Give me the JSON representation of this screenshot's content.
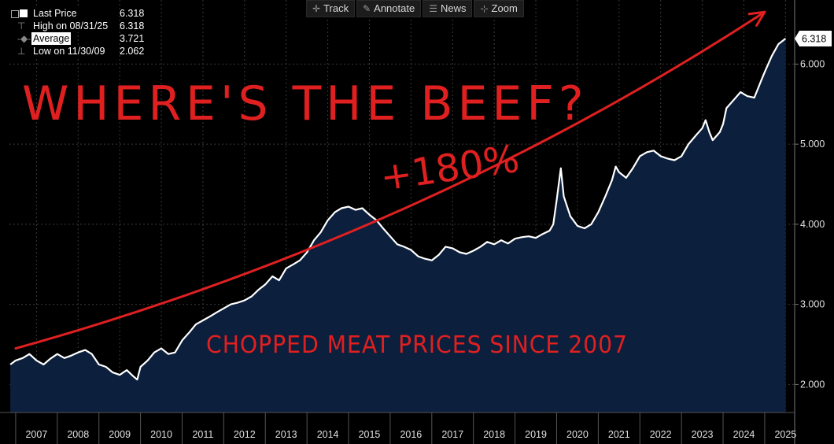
{
  "toolbar": {
    "track": "Track",
    "annotate": "Annotate",
    "news": "News",
    "zoom": "Zoom"
  },
  "legend": {
    "last_label": "Last Price",
    "last_value": "6.318",
    "high_label": "High on 08/31/25",
    "high_value": "6.318",
    "avg_label": "Average",
    "avg_value": "3.721",
    "low_label": "Low on 11/30/09",
    "low_value": "2.062"
  },
  "annotations": {
    "headline": "WHERE'S THE BEEF?",
    "pct": "+180%",
    "caption": "CHOPPED MEAT PRICES SINCE 2007"
  },
  "colors": {
    "background": "#000000",
    "line": "#ffffff",
    "area": "#0c1f3d",
    "annotation": "#e02020",
    "grid": "#3a3a3a"
  },
  "chart_data": {
    "type": "area",
    "xlim": [
      2006.85,
      2025.72
    ],
    "ylim": [
      1.65,
      6.8
    ],
    "yticks": [
      2.0,
      3.0,
      4.0,
      5.0,
      6.0
    ],
    "ytick_labels": [
      "2.000",
      "3.000",
      "4.000",
      "5.000",
      "6.000"
    ],
    "xtick_labels": [
      "2007",
      "2008",
      "2009",
      "2010",
      "2011",
      "2012",
      "2013",
      "2014",
      "2015",
      "2016",
      "2017",
      "2018",
      "2019",
      "2020",
      "2021",
      "2022",
      "2023",
      "2024",
      "2025"
    ],
    "last_value_label": "6.318",
    "grid": true,
    "series": [
      {
        "name": "Last Price",
        "points": [
          [
            2006.87,
            2.25
          ],
          [
            2007.0,
            2.3
          ],
          [
            2007.17,
            2.33
          ],
          [
            2007.33,
            2.38
          ],
          [
            2007.5,
            2.3
          ],
          [
            2007.67,
            2.25
          ],
          [
            2007.83,
            2.32
          ],
          [
            2008.0,
            2.38
          ],
          [
            2008.17,
            2.33
          ],
          [
            2008.33,
            2.36
          ],
          [
            2008.5,
            2.4
          ],
          [
            2008.67,
            2.43
          ],
          [
            2008.83,
            2.38
          ],
          [
            2009.0,
            2.25
          ],
          [
            2009.17,
            2.22
          ],
          [
            2009.33,
            2.15
          ],
          [
            2009.5,
            2.12
          ],
          [
            2009.67,
            2.18
          ],
          [
            2009.83,
            2.1
          ],
          [
            2009.92,
            2.062
          ],
          [
            2010.0,
            2.22
          ],
          [
            2010.17,
            2.3
          ],
          [
            2010.33,
            2.4
          ],
          [
            2010.5,
            2.45
          ],
          [
            2010.67,
            2.38
          ],
          [
            2010.83,
            2.4
          ],
          [
            2011.0,
            2.55
          ],
          [
            2011.17,
            2.65
          ],
          [
            2011.33,
            2.75
          ],
          [
            2011.5,
            2.8
          ],
          [
            2011.67,
            2.85
          ],
          [
            2011.83,
            2.9
          ],
          [
            2012.0,
            2.95
          ],
          [
            2012.17,
            3.0
          ],
          [
            2012.33,
            3.02
          ],
          [
            2012.5,
            3.05
          ],
          [
            2012.67,
            3.1
          ],
          [
            2012.83,
            3.18
          ],
          [
            2013.0,
            3.25
          ],
          [
            2013.17,
            3.35
          ],
          [
            2013.33,
            3.3
          ],
          [
            2013.5,
            3.45
          ],
          [
            2013.67,
            3.5
          ],
          [
            2013.83,
            3.55
          ],
          [
            2014.0,
            3.65
          ],
          [
            2014.17,
            3.8
          ],
          [
            2014.33,
            3.9
          ],
          [
            2014.5,
            4.05
          ],
          [
            2014.67,
            4.15
          ],
          [
            2014.83,
            4.2
          ],
          [
            2015.0,
            4.22
          ],
          [
            2015.17,
            4.18
          ],
          [
            2015.33,
            4.2
          ],
          [
            2015.5,
            4.12
          ],
          [
            2015.67,
            4.05
          ],
          [
            2015.83,
            3.95
          ],
          [
            2016.0,
            3.85
          ],
          [
            2016.17,
            3.75
          ],
          [
            2016.33,
            3.72
          ],
          [
            2016.5,
            3.68
          ],
          [
            2016.67,
            3.6
          ],
          [
            2016.83,
            3.57
          ],
          [
            2017.0,
            3.55
          ],
          [
            2017.17,
            3.62
          ],
          [
            2017.33,
            3.72
          ],
          [
            2017.5,
            3.7
          ],
          [
            2017.67,
            3.65
          ],
          [
            2017.83,
            3.63
          ],
          [
            2018.0,
            3.67
          ],
          [
            2018.17,
            3.72
          ],
          [
            2018.33,
            3.78
          ],
          [
            2018.5,
            3.75
          ],
          [
            2018.67,
            3.8
          ],
          [
            2018.83,
            3.76
          ],
          [
            2019.0,
            3.82
          ],
          [
            2019.17,
            3.84
          ],
          [
            2019.33,
            3.85
          ],
          [
            2019.5,
            3.83
          ],
          [
            2019.67,
            3.88
          ],
          [
            2019.83,
            3.92
          ],
          [
            2019.92,
            4.0
          ],
          [
            2020.0,
            4.3
          ],
          [
            2020.1,
            4.7
          ],
          [
            2020.17,
            4.35
          ],
          [
            2020.33,
            4.1
          ],
          [
            2020.5,
            3.98
          ],
          [
            2020.67,
            3.95
          ],
          [
            2020.83,
            4.0
          ],
          [
            2021.0,
            4.15
          ],
          [
            2021.17,
            4.35
          ],
          [
            2021.33,
            4.55
          ],
          [
            2021.42,
            4.72
          ],
          [
            2021.5,
            4.65
          ],
          [
            2021.67,
            4.58
          ],
          [
            2021.83,
            4.7
          ],
          [
            2022.0,
            4.85
          ],
          [
            2022.17,
            4.9
          ],
          [
            2022.33,
            4.92
          ],
          [
            2022.5,
            4.85
          ],
          [
            2022.67,
            4.82
          ],
          [
            2022.83,
            4.8
          ],
          [
            2023.0,
            4.85
          ],
          [
            2023.17,
            5.0
          ],
          [
            2023.33,
            5.1
          ],
          [
            2023.5,
            5.2
          ],
          [
            2023.58,
            5.3
          ],
          [
            2023.67,
            5.15
          ],
          [
            2023.75,
            5.05
          ],
          [
            2023.92,
            5.15
          ],
          [
            2024.0,
            5.25
          ],
          [
            2024.08,
            5.45
          ],
          [
            2024.25,
            5.55
          ],
          [
            2024.42,
            5.65
          ],
          [
            2024.58,
            5.6
          ],
          [
            2024.75,
            5.58
          ],
          [
            2024.92,
            5.8
          ],
          [
            2025.0,
            5.9
          ],
          [
            2025.17,
            6.1
          ],
          [
            2025.33,
            6.25
          ],
          [
            2025.5,
            6.318
          ]
        ]
      }
    ],
    "trend_arrow": {
      "from": [
        2007.0,
        2.45
      ],
      "to": [
        2025.0,
        6.65
      ]
    }
  }
}
